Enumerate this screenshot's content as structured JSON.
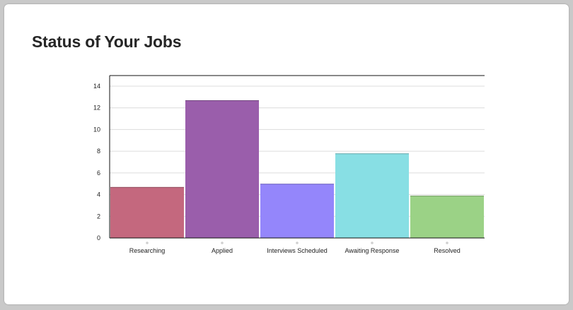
{
  "card": {
    "title": "Status of Your Jobs"
  },
  "chart_data": {
    "type": "bar",
    "title": "",
    "xlabel": "",
    "ylabel": "",
    "categories": [
      "Researching",
      "Applied",
      "Interviews Scheduled",
      "Awaiting Response",
      "Resolved"
    ],
    "values": [
      4.7,
      12.7,
      5.0,
      7.8,
      3.9
    ],
    "colors": [
      "#c4687e",
      "#9a5eab",
      "#9486fb",
      "#88dfe4",
      "#9bd286"
    ],
    "ylim": [
      0,
      14
    ],
    "yticks": [
      0,
      2,
      4,
      6,
      8,
      10,
      12,
      14
    ],
    "grid": true,
    "legend": "none"
  }
}
